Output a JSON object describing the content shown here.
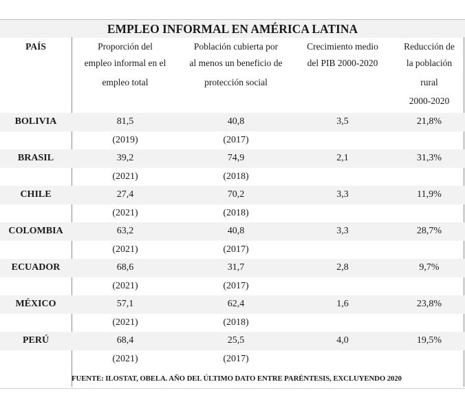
{
  "title": "EMPLEO INFORMAL EN AMÉRICA LATINA",
  "headers": {
    "pais": "PAÍS",
    "col1": [
      "Proporción del",
      "empleo informal en el",
      "empleo total"
    ],
    "col2": [
      "Población cubierta por",
      "al menos un beneficio de",
      "protección social"
    ],
    "col3": [
      "Crecimiento medio",
      "del PIB 2000-2020"
    ],
    "col4": [
      "Reducción de",
      "la población",
      "rural",
      "2000-2020"
    ]
  },
  "rows": [
    {
      "country": "BOLIVIA",
      "informal": "81,5",
      "informal_year": "(2019)",
      "coverage": "40,8",
      "coverage_year": "(2017)",
      "gdp": "3,5",
      "rural": "21,8%"
    },
    {
      "country": "BRASIL",
      "informal": "39,2",
      "informal_year": "(2021)",
      "coverage": "74,9",
      "coverage_year": "(2018)",
      "gdp": "2,1",
      "rural": "31,3%"
    },
    {
      "country": "CHILE",
      "informal": "27,4",
      "informal_year": "(2021)",
      "coverage": "70,2",
      "coverage_year": "(2018)",
      "gdp": "3,3",
      "rural": "11,9%"
    },
    {
      "country": "COLOMBIA",
      "informal": "63,2",
      "informal_year": "(2021)",
      "coverage": "40,8",
      "coverage_year": "(2017)",
      "gdp": "3,3",
      "rural": "28,7%"
    },
    {
      "country": "ECUADOR",
      "informal": "68,6",
      "informal_year": "(2021)",
      "coverage": "31,7",
      "coverage_year": "(2017)",
      "gdp": "2,8",
      "rural": "9,7%"
    },
    {
      "country": "MÉXICO",
      "informal": "57,1",
      "informal_year": "(2021)",
      "coverage": "62,4",
      "coverage_year": "(2018)",
      "gdp": "1,6",
      "rural": "23,8%"
    },
    {
      "country": "PERÚ",
      "informal": "68,4",
      "informal_year": "(2021)",
      "coverage": "25,5",
      "coverage_year": "(2017)",
      "gdp": "4,0",
      "rural": "19,5%"
    }
  ],
  "footer": "FUENTE: ILOSTAT, OBELA. AÑO DEL ÚLTIMO DATO ENTRE PARÉNTESIS, EXCLUYENDO 2020"
}
